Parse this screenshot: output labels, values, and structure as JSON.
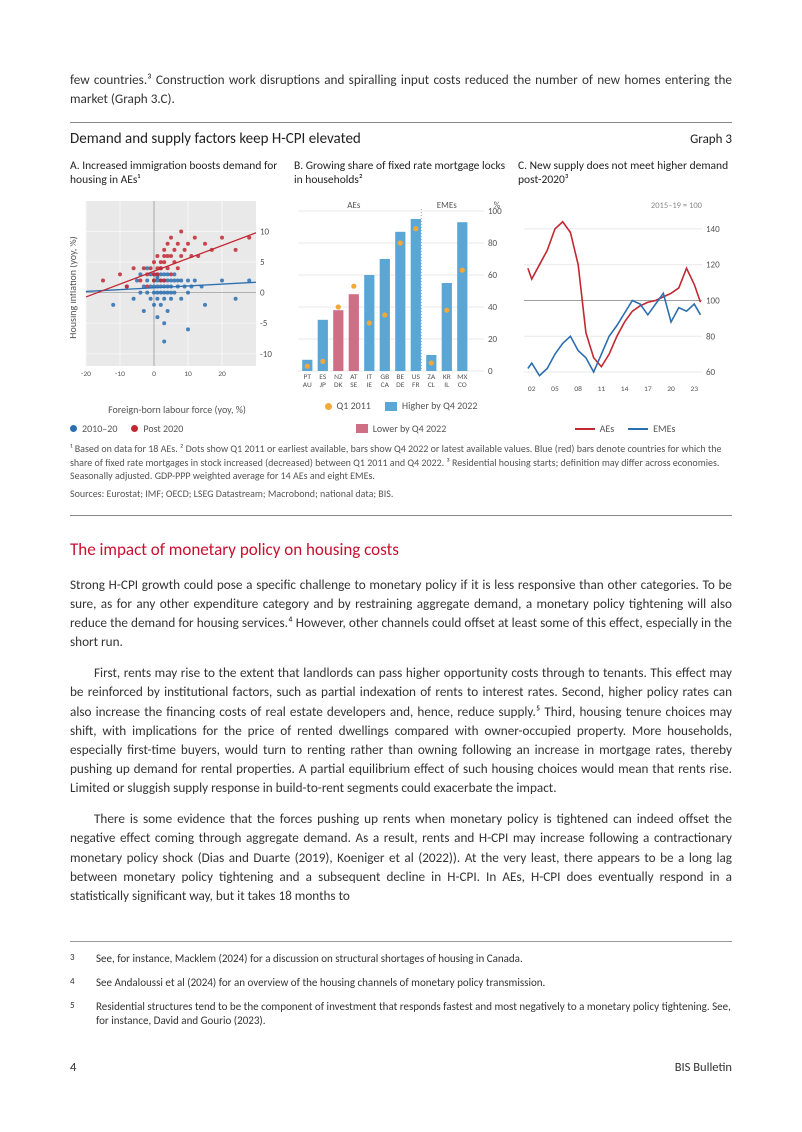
{
  "top_paragraph": "few countries.³  Construction work disruptions and spiralling input costs reduced the number of new homes entering the market (Graph 3.C).",
  "graph": {
    "main_title": "Demand and supply factors keep H-CPI elevated",
    "graph_label": "Graph 3",
    "panelA": {
      "title": "A. Increased immigration boosts demand for housing in AEs¹",
      "xlabel": "Foreign-born labour force (yoy, %)",
      "ylabel": "Housing inflation (yoy, %)",
      "xlim": [
        -20,
        30
      ],
      "ylim": [
        -12,
        15
      ],
      "xticks": [
        -20,
        -10,
        0,
        10,
        20
      ],
      "yticks": [
        -10,
        -5,
        0,
        5,
        10
      ],
      "background": "#e9e9ea",
      "grid": "#f6f6f7",
      "colors": {
        "series1": "#2b6fb0",
        "series2": "#c22832",
        "fit1": "#2b6fb0",
        "fit2": "#c22832"
      },
      "legend": [
        {
          "label": "2010–20",
          "color": "#2b6fb0",
          "marker": "dot"
        },
        {
          "label": "Post 2020",
          "color": "#c22832",
          "marker": "dot"
        }
      ],
      "series1": [
        [
          -12,
          -2
        ],
        [
          -8,
          1
        ],
        [
          -6,
          -1
        ],
        [
          -5,
          2
        ],
        [
          -4,
          0
        ],
        [
          -4,
          3
        ],
        [
          -3,
          -3
        ],
        [
          -3,
          1
        ],
        [
          -2,
          0
        ],
        [
          -2,
          2
        ],
        [
          -2,
          4
        ],
        [
          -1,
          -1
        ],
        [
          -1,
          1
        ],
        [
          -1,
          3
        ],
        [
          0,
          -2
        ],
        [
          0,
          0
        ],
        [
          0,
          1
        ],
        [
          0,
          2
        ],
        [
          0,
          3
        ],
        [
          1,
          -4
        ],
        [
          1,
          -1
        ],
        [
          1,
          0
        ],
        [
          1,
          1
        ],
        [
          1,
          2
        ],
        [
          1,
          2.5
        ],
        [
          1,
          3
        ],
        [
          2,
          -2
        ],
        [
          2,
          0
        ],
        [
          2,
          1
        ],
        [
          2,
          2
        ],
        [
          2,
          3
        ],
        [
          2,
          4
        ],
        [
          3,
          -8
        ],
        [
          3,
          -5
        ],
        [
          3,
          -1
        ],
        [
          3,
          0
        ],
        [
          3,
          1
        ],
        [
          3,
          2
        ],
        [
          3,
          3
        ],
        [
          4,
          -3
        ],
        [
          4,
          0
        ],
        [
          4,
          1
        ],
        [
          4,
          2
        ],
        [
          4,
          3
        ],
        [
          5,
          -1
        ],
        [
          5,
          0
        ],
        [
          5,
          1
        ],
        [
          5,
          2
        ],
        [
          6,
          0
        ],
        [
          6,
          2
        ],
        [
          6,
          3
        ],
        [
          7,
          1
        ],
        [
          7,
          2
        ],
        [
          8,
          -1
        ],
        [
          8,
          2
        ],
        [
          9,
          1
        ],
        [
          10,
          -6
        ],
        [
          10,
          0
        ],
        [
          10,
          2
        ],
        [
          11,
          1
        ],
        [
          12,
          2
        ],
        [
          14,
          1
        ],
        [
          15,
          -2
        ],
        [
          20,
          2
        ],
        [
          24,
          -1
        ],
        [
          28,
          2
        ]
      ],
      "series2": [
        [
          -15,
          2
        ],
        [
          -10,
          3
        ],
        [
          -8,
          1
        ],
        [
          -6,
          4
        ],
        [
          -4,
          2
        ],
        [
          -3,
          4
        ],
        [
          -2,
          1
        ],
        [
          -2,
          3
        ],
        [
          -1,
          4
        ],
        [
          0,
          2
        ],
        [
          0,
          3
        ],
        [
          0,
          5
        ],
        [
          1,
          3
        ],
        [
          1,
          4
        ],
        [
          1,
          6
        ],
        [
          2,
          2
        ],
        [
          2,
          4
        ],
        [
          2,
          5
        ],
        [
          3,
          2
        ],
        [
          3,
          5
        ],
        [
          3,
          6
        ],
        [
          3,
          7
        ],
        [
          4,
          4
        ],
        [
          4,
          6
        ],
        [
          4,
          8
        ],
        [
          5,
          3
        ],
        [
          5,
          6
        ],
        [
          5,
          9
        ],
        [
          6,
          5
        ],
        [
          6,
          7
        ],
        [
          7,
          4
        ],
        [
          7,
          8
        ],
        [
          8,
          6
        ],
        [
          8,
          10
        ],
        [
          9,
          7
        ],
        [
          10,
          8
        ],
        [
          11,
          6
        ],
        [
          12,
          9
        ],
        [
          13,
          6
        ],
        [
          15,
          8
        ],
        [
          17,
          7
        ],
        [
          20,
          9
        ],
        [
          24,
          7
        ],
        [
          28,
          9
        ]
      ],
      "fit1": {
        "slope": 0.03,
        "intercept": 0.8
      },
      "fit2": {
        "slope": 0.21,
        "intercept": 3.5
      }
    },
    "panelB": {
      "title": "B. Growing share of fixed rate mortgage locks in households²",
      "ylabel": "%",
      "ylim": [
        0,
        100
      ],
      "yticks": [
        0,
        20,
        40,
        60,
        80,
        100
      ],
      "region_labels": {
        "left": "AEs",
        "right": "EMEs"
      },
      "colors": {
        "dot": "#f2a83b",
        "up": "#5aa7d6",
        "down": "#cf6f86",
        "grid": "#e9e9ea",
        "divider": "#888"
      },
      "legend": [
        {
          "label": "Q1 2011",
          "color": "#f2a83b",
          "marker": "dot"
        },
        {
          "label": "Higher by Q4 2022",
          "color": "#5aa7d6",
          "marker": "box"
        },
        {
          "label": "Lower by Q4 2022",
          "color": "#cf6f86",
          "marker": "box"
        }
      ],
      "bars": [
        {
          "x1": "PT",
          "x2": "AU",
          "bar": 7,
          "dot": 3,
          "dir": "up"
        },
        {
          "x1": "ES",
          "x2": "JP",
          "bar": 32,
          "dot": 6,
          "dir": "up"
        },
        {
          "x1": "NZ",
          "x2": "DK",
          "bar": 38,
          "dot": 40,
          "dir": "down"
        },
        {
          "x1": "AT",
          "x2": "SE",
          "bar": 48,
          "dot": 53,
          "dir": "down"
        },
        {
          "x1": "IT",
          "x2": "IE",
          "bar": 60,
          "dot": 30,
          "dir": "up"
        },
        {
          "x1": "GB",
          "x2": "CA",
          "bar": 70,
          "dot": 35,
          "dir": "up"
        },
        {
          "x1": "BE",
          "x2": "DE",
          "bar": 87,
          "dot": 80,
          "dir": "up"
        },
        {
          "x1": "US",
          "x2": "FR",
          "bar": 95,
          "dot": 89,
          "dir": "up"
        },
        {
          "x1": "ZA",
          "x2": "CL",
          "bar": 10,
          "dot": 5,
          "dir": "up"
        },
        {
          "x1": "KR",
          "x2": "IL",
          "bar": 55,
          "dot": 38,
          "dir": "up"
        },
        {
          "x1": "MX",
          "x2": "CO",
          "bar": 93,
          "dot": 63,
          "dir": "up"
        }
      ],
      "split_after": 7
    },
    "panelC": {
      "title": "C. New supply does not meet higher demand post-2020³",
      "ref": "2015–19 = 100",
      "xlim": [
        2001,
        2024
      ],
      "xticks": [
        2002,
        2005,
        2008,
        2011,
        2014,
        2017,
        2020,
        2023
      ],
      "xtick_labels": [
        "02",
        "05",
        "08",
        "11",
        "14",
        "17",
        "20",
        "23"
      ],
      "ylim": [
        55,
        150
      ],
      "yticks": [
        60,
        80,
        100,
        120,
        140
      ],
      "grid": "#e9e9ea",
      "colors": {
        "aes": "#c22832",
        "emes": "#2b6fb0",
        "hline": "#888"
      },
      "legend": [
        {
          "label": "AEs",
          "color": "#c22832",
          "marker": "line"
        },
        {
          "label": "EMEs",
          "color": "#2b6fb0",
          "marker": "line"
        }
      ],
      "aes": [
        [
          2001.5,
          118
        ],
        [
          2002,
          112
        ],
        [
          2003,
          120
        ],
        [
          2004,
          128
        ],
        [
          2005,
          140
        ],
        [
          2006,
          144
        ],
        [
          2007,
          138
        ],
        [
          2008,
          120
        ],
        [
          2009,
          82
        ],
        [
          2010,
          68
        ],
        [
          2011,
          63
        ],
        [
          2012,
          70
        ],
        [
          2013,
          80
        ],
        [
          2014,
          88
        ],
        [
          2015,
          94
        ],
        [
          2016,
          97
        ],
        [
          2017,
          99
        ],
        [
          2018,
          100
        ],
        [
          2019,
          102
        ],
        [
          2020,
          104
        ],
        [
          2021,
          107
        ],
        [
          2022,
          118
        ],
        [
          2023,
          109
        ],
        [
          2023.8,
          99
        ]
      ],
      "emes": [
        [
          2001.5,
          62
        ],
        [
          2002,
          65
        ],
        [
          2003,
          58
        ],
        [
          2004,
          62
        ],
        [
          2005,
          70
        ],
        [
          2006,
          76
        ],
        [
          2007,
          80
        ],
        [
          2008,
          72
        ],
        [
          2009,
          68
        ],
        [
          2010,
          60
        ],
        [
          2011,
          70
        ],
        [
          2012,
          80
        ],
        [
          2013,
          86
        ],
        [
          2014,
          93
        ],
        [
          2015,
          100
        ],
        [
          2016,
          98
        ],
        [
          2017,
          92
        ],
        [
          2018,
          98
        ],
        [
          2019,
          104
        ],
        [
          2020,
          88
        ],
        [
          2021,
          96
        ],
        [
          2022,
          94
        ],
        [
          2023,
          98
        ],
        [
          2023.8,
          92
        ]
      ]
    },
    "footnotes": "¹  Based on data for 18 AEs.    ²  Dots show Q1 2011 or earliest available, bars show Q4 2022 or latest available values. Blue (red) bars denote countries for which the share of fixed rate mortgages in stock increased (decreased) between Q1 2011 and Q4 2022.    ³  Residential housing starts; definition may differ across economies. Seasonally adjusted. GDP-PPP weighted average for 14 AEs and eight EMEs.",
    "sources": "Sources: Eurostat; IMF; OECD; LSEG Datastream; Macrobond; national data; BIS."
  },
  "section_heading": "The impact of monetary policy on housing costs",
  "para1": "Strong H-CPI growth could pose a specific challenge to monetary policy if it is less responsive than other categories. To be sure, as for any other expenditure category and by restraining aggregate demand, a monetary policy tightening will also reduce the demand for housing services.⁴  However, other channels could offset at least some of this effect, especially in the short run.",
  "para2": "First, rents may rise to the extent that landlords can pass higher opportunity costs through to tenants. This effect may be reinforced by institutional factors, such as partial indexation of rents to interest rates. Second, higher policy rates can also increase the financing costs of real estate developers and, hence, reduce supply.⁵  Third, housing tenure choices may shift, with implications for the price of rented dwellings compared with owner-occupied property. More households, especially first-time buyers, would turn to renting rather than owning following an increase in mortgage rates, thereby pushing up demand for rental properties. A partial equilibrium effect of such housing choices would mean that rents rise. Limited or sluggish supply response in build-to-rent segments could exacerbate the impact.",
  "para3": "There is some evidence that the forces pushing up rents when monetary policy is tightened can indeed offset the negative effect coming through aggregate demand. As a result, rents and H-CPI may increase following a contractionary monetary policy shock (Dias and Duarte (2019), Koeniger et al (2022)). At the very least, there appears to be a long lag between monetary policy tightening and a subsequent decline in H-CPI. In AEs, H-CPI does eventually respond in a statistically significant way, but it takes 18 months to",
  "page_footnotes": [
    {
      "num": "3",
      "text": "See, for instance, Macklem (2024) for a discussion on structural shortages of housing in Canada."
    },
    {
      "num": "4",
      "text": "See Andaloussi et al (2024) for an overview of the housing channels of monetary policy transmission."
    },
    {
      "num": "5",
      "text": "Residential structures tend to be the component of investment that responds fastest and most negatively to a monetary policy tightening. See, for instance, David and Gourio (2023)."
    }
  ],
  "footer": {
    "page": "4",
    "source": "BIS Bulletin"
  }
}
